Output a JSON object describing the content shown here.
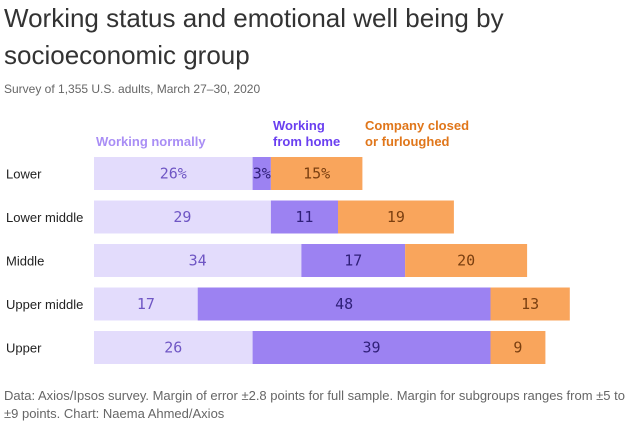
{
  "header": {
    "title": "Working status and emotional well being by socioeconomic group",
    "subtitle": "Survey of 1,355 U.S. adults, March 27–30, 2020"
  },
  "footer": {
    "note": "Data: Axios/Ipsos survey. Margin of error ±2.8 points for full sample. Margin for subgroups ranges from ±5 to ±9 points. Chart: Naema Ahmed/Axios"
  },
  "chart_data": {
    "type": "bar",
    "stacked": true,
    "orientation": "horizontal",
    "categories": [
      "Lower",
      "Lower middle",
      "Middle",
      "Upper middle",
      "Upper"
    ],
    "series": [
      {
        "name": "Working normally",
        "values": [
          26,
          29,
          34,
          17,
          26
        ],
        "color": "#e3dcfc",
        "text_color": "#6f56c4"
      },
      {
        "name": "Working from home",
        "values": [
          3,
          11,
          17,
          48,
          39
        ],
        "color": "#9c82f2",
        "text_color": "#2f1f78"
      },
      {
        "name": "Company closed or furloughed",
        "values": [
          15,
          19,
          20,
          13,
          9
        ],
        "color": "#f9a55c",
        "text_color": "#7a3f10"
      }
    ],
    "value_labels": [
      [
        "26%",
        "3%",
        "15%"
      ],
      [
        "29",
        "11",
        "19"
      ],
      [
        "34",
        "17",
        "20"
      ],
      [
        "17",
        "48",
        "13"
      ],
      [
        "26",
        "39",
        "9"
      ]
    ],
    "legend": [
      {
        "lines": [
          "Working normally"
        ],
        "color": "#a98ef5"
      },
      {
        "lines": [
          "Working",
          "from home"
        ],
        "color": "#6a3ff0"
      },
      {
        "lines": [
          "Company closed",
          "or furloughed"
        ],
        "color": "#e0761a"
      }
    ],
    "legend_placement": "top",
    "grid": false
  }
}
